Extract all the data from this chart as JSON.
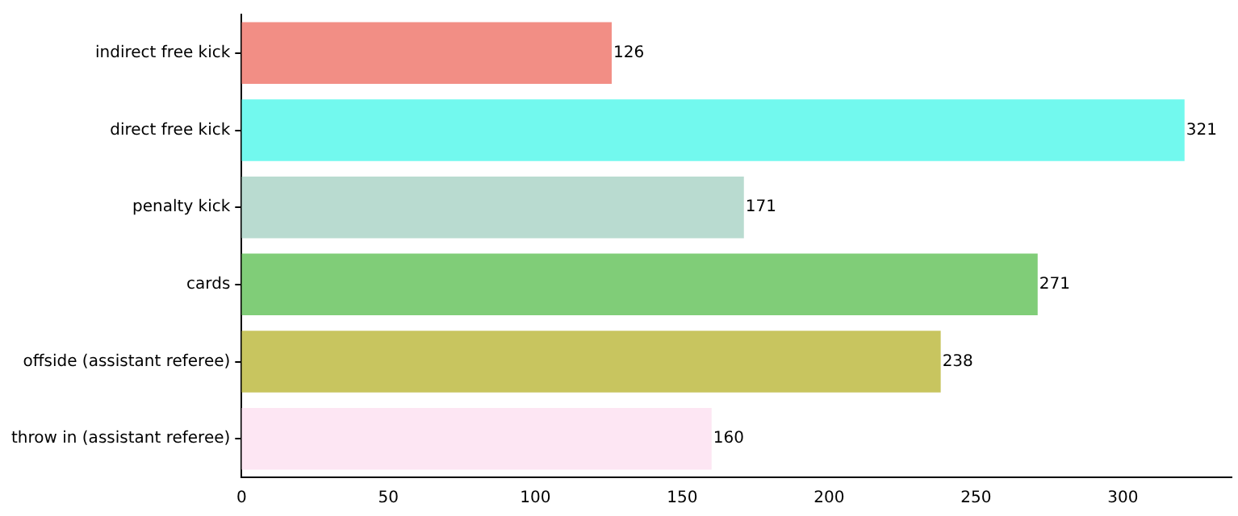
{
  "chart_data": {
    "type": "bar",
    "orientation": "horizontal",
    "categories": [
      "indirect free kick",
      "direct free kick",
      "penalty kick",
      "cards",
      "offside (assistant referee)",
      "throw in (assistant referee)"
    ],
    "values": [
      126,
      321,
      171,
      271,
      238,
      160
    ],
    "colors": [
      "#f28e85",
      "#72f9ee",
      "#b9dbd0",
      "#80cd78",
      "#c8c55f",
      "#fde6f3"
    ],
    "xlim": [
      0,
      337
    ],
    "xticks": [
      0,
      50,
      100,
      150,
      200,
      250,
      300
    ],
    "data_labels": true,
    "grid": false,
    "legend": false
  }
}
